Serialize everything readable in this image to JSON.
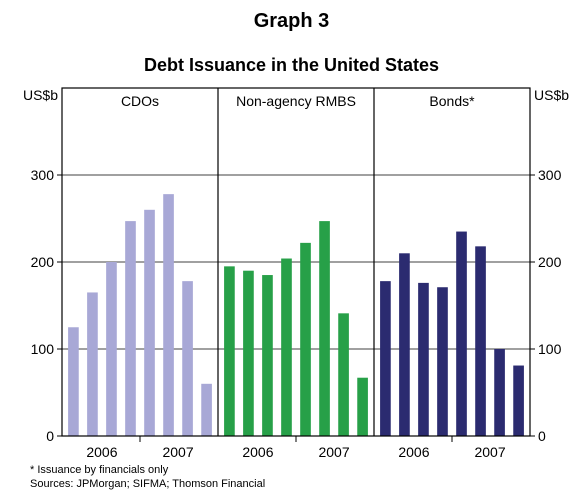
{
  "titles": {
    "graph": "Graph 3",
    "chart": "Debt Issuance in the United States"
  },
  "notes": {
    "footnote": "*   Issuance by financials only",
    "sources": "Sources: JPMorgan; SIFMA; Thomson Financial"
  },
  "colors": {
    "cdos": "#a8a8d6",
    "rmbs": "#27a048",
    "bonds": "#2b2b70"
  },
  "chart_data": {
    "type": "bar",
    "y_unit_left": "US$b",
    "y_unit_right": "US$b",
    "ylim": [
      0,
      400
    ],
    "yticks": [
      0,
      100,
      200,
      300
    ],
    "grid": true,
    "panels": [
      {
        "name": "CDOs",
        "color_key": "cdos",
        "x_labels": [
          "2006",
          "2007"
        ],
        "values": [
          125,
          165,
          200,
          247,
          260,
          278,
          178,
          60
        ]
      },
      {
        "name": "Non-agency RMBS",
        "color_key": "rmbs",
        "x_labels": [
          "2006",
          "2007"
        ],
        "values": [
          195,
          190,
          185,
          204,
          222,
          247,
          141,
          67
        ]
      },
      {
        "name": "Bonds*",
        "color_key": "bonds",
        "x_labels": [
          "2006",
          "2007"
        ],
        "values": [
          178,
          210,
          176,
          171,
          235,
          218,
          100,
          81
        ]
      }
    ]
  }
}
